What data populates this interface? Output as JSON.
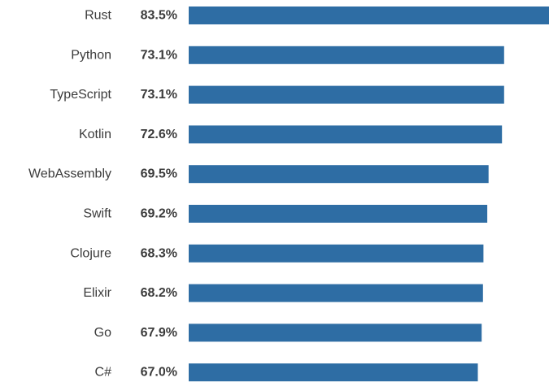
{
  "chart_data": {
    "type": "bar",
    "orientation": "horizontal",
    "categories": [
      "Rust",
      "Python",
      "TypeScript",
      "Kotlin",
      "WebAssembly",
      "Swift",
      "Clojure",
      "Elixir",
      "Go",
      "C#"
    ],
    "values": [
      83.5,
      73.1,
      73.1,
      72.6,
      69.5,
      69.2,
      68.3,
      68.2,
      67.9,
      67.0
    ],
    "value_labels": [
      "83.5%",
      "73.1%",
      "73.1%",
      "72.6%",
      "69.5%",
      "69.2%",
      "68.3%",
      "68.2%",
      "67.9%",
      "67.0%"
    ],
    "title": "",
    "xlabel": "",
    "ylabel": "",
    "xlim": [
      0,
      83.5
    ],
    "grid": false,
    "legend": "none",
    "bar_color": "#2e6da4",
    "text_color": "#3b3b3b"
  }
}
